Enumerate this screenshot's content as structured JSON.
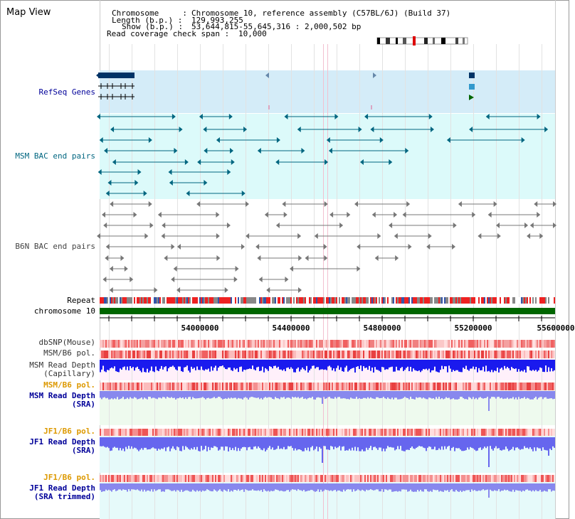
{
  "title": "Map View",
  "info": {
    "chromosome_label": "Chromosome     :",
    "chromosome_value": "Chromosome 10, reference assembly (C57BL/6J) (Build 37)",
    "length_label": "Length (b.p.) :",
    "length_value": "129,993,255",
    "show_label": "Show (b.p.) :",
    "show_value": "53,644,815-55,645,316 : 2,000,502 bp",
    "span_label": "Read coverage check span :",
    "span_value": "10,000"
  },
  "tracks": {
    "refseq": "RefSeq Genes",
    "msm_bac": "MSM BAC end pairs",
    "b6n_bac": "B6N BAC end pairs",
    "repeat": "Repeat",
    "chromosome": "chromosome 10",
    "dbsnp": "dbSNP(Mouse)",
    "msm_b6_pol": "MSM/B6 pol.",
    "msm_read_depth_cap_1": "MSM Read Depth",
    "msm_read_depth_cap_2": "(Capillary)",
    "msm_b6_pol_2": "MSM/B6 pol.",
    "msm_read_depth_sra_1": "MSM Read Depth",
    "msm_read_depth_sra_2": "(SRA)",
    "jf1_b6_pol": "JF1/B6 pol.",
    "jf1_read_depth_sra_1": "JF1 Read Depth",
    "jf1_read_depth_sra_2": "(SRA)",
    "jf1_b6_pol_2": "JF1/B6 pol.",
    "jf1_read_depth_trim_1": "JF1 Read Depth",
    "jf1_read_depth_trim_2": "(SRA trimmed)"
  },
  "axis_ticks": [
    "54000000",
    "54400000",
    "54800000",
    "55200000",
    "55600000"
  ],
  "colors": {
    "label_blue": "#000099",
    "label_teal": "#006680",
    "label_gray": "#444444",
    "label_orange": "#dd9900",
    "refseq_bg": "#d4ecf8",
    "msm_bac_bg": "#dcfafa",
    "chromosome_green": "#006600",
    "depth_blue": "#0000cc",
    "depth_light": "#8888ee"
  }
}
